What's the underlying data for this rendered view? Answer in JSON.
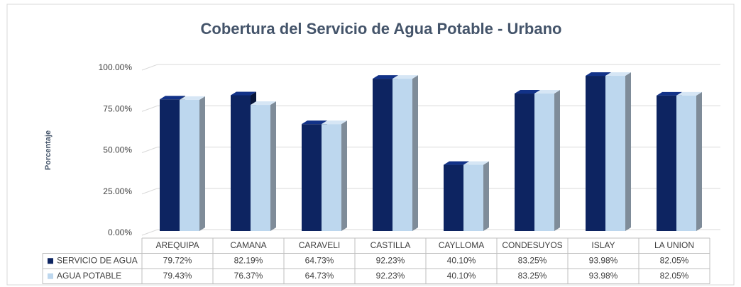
{
  "chart_data": {
    "type": "bar3d",
    "title": "Cobertura del Servicio de Agua Potable - Urbano",
    "y_label": "Porcentaje",
    "categories": [
      "AREQUIPA",
      "CAMANA",
      "CARAVELI",
      "CASTILLA",
      "CAYLLOMA",
      "CONDESUYOS",
      "ISLAY",
      "LA UNION"
    ],
    "series": [
      {
        "name": "SERVICIO DE AGUA",
        "color": "#0d2461",
        "values": [
          79.72,
          82.19,
          64.73,
          92.23,
          40.1,
          83.25,
          93.98,
          82.05
        ],
        "value_labels": [
          "79.72%",
          "82.19%",
          "64.73%",
          "92.23%",
          "40.10%",
          "83.25%",
          "93.98%",
          "82.05%"
        ]
      },
      {
        "name": "AGUA POTABLE",
        "color": "#bdd7ee",
        "values": [
          79.43,
          76.37,
          64.73,
          92.23,
          40.1,
          83.25,
          93.98,
          82.05
        ],
        "value_labels": [
          "79.43%",
          "76.37%",
          "64.73%",
          "92.23%",
          "40.10%",
          "83.25%",
          "93.98%",
          "82.05%"
        ]
      }
    ],
    "ylim": [
      0,
      100
    ],
    "yticks": [
      {
        "value": 0,
        "label": "0.00%"
      },
      {
        "value": 25,
        "label": "25.00%"
      },
      {
        "value": 50,
        "label": "50.00%"
      },
      {
        "value": 75,
        "label": "75.00%"
      },
      {
        "value": 100,
        "label": "100.00%"
      }
    ],
    "grid": true,
    "data_table": true
  }
}
